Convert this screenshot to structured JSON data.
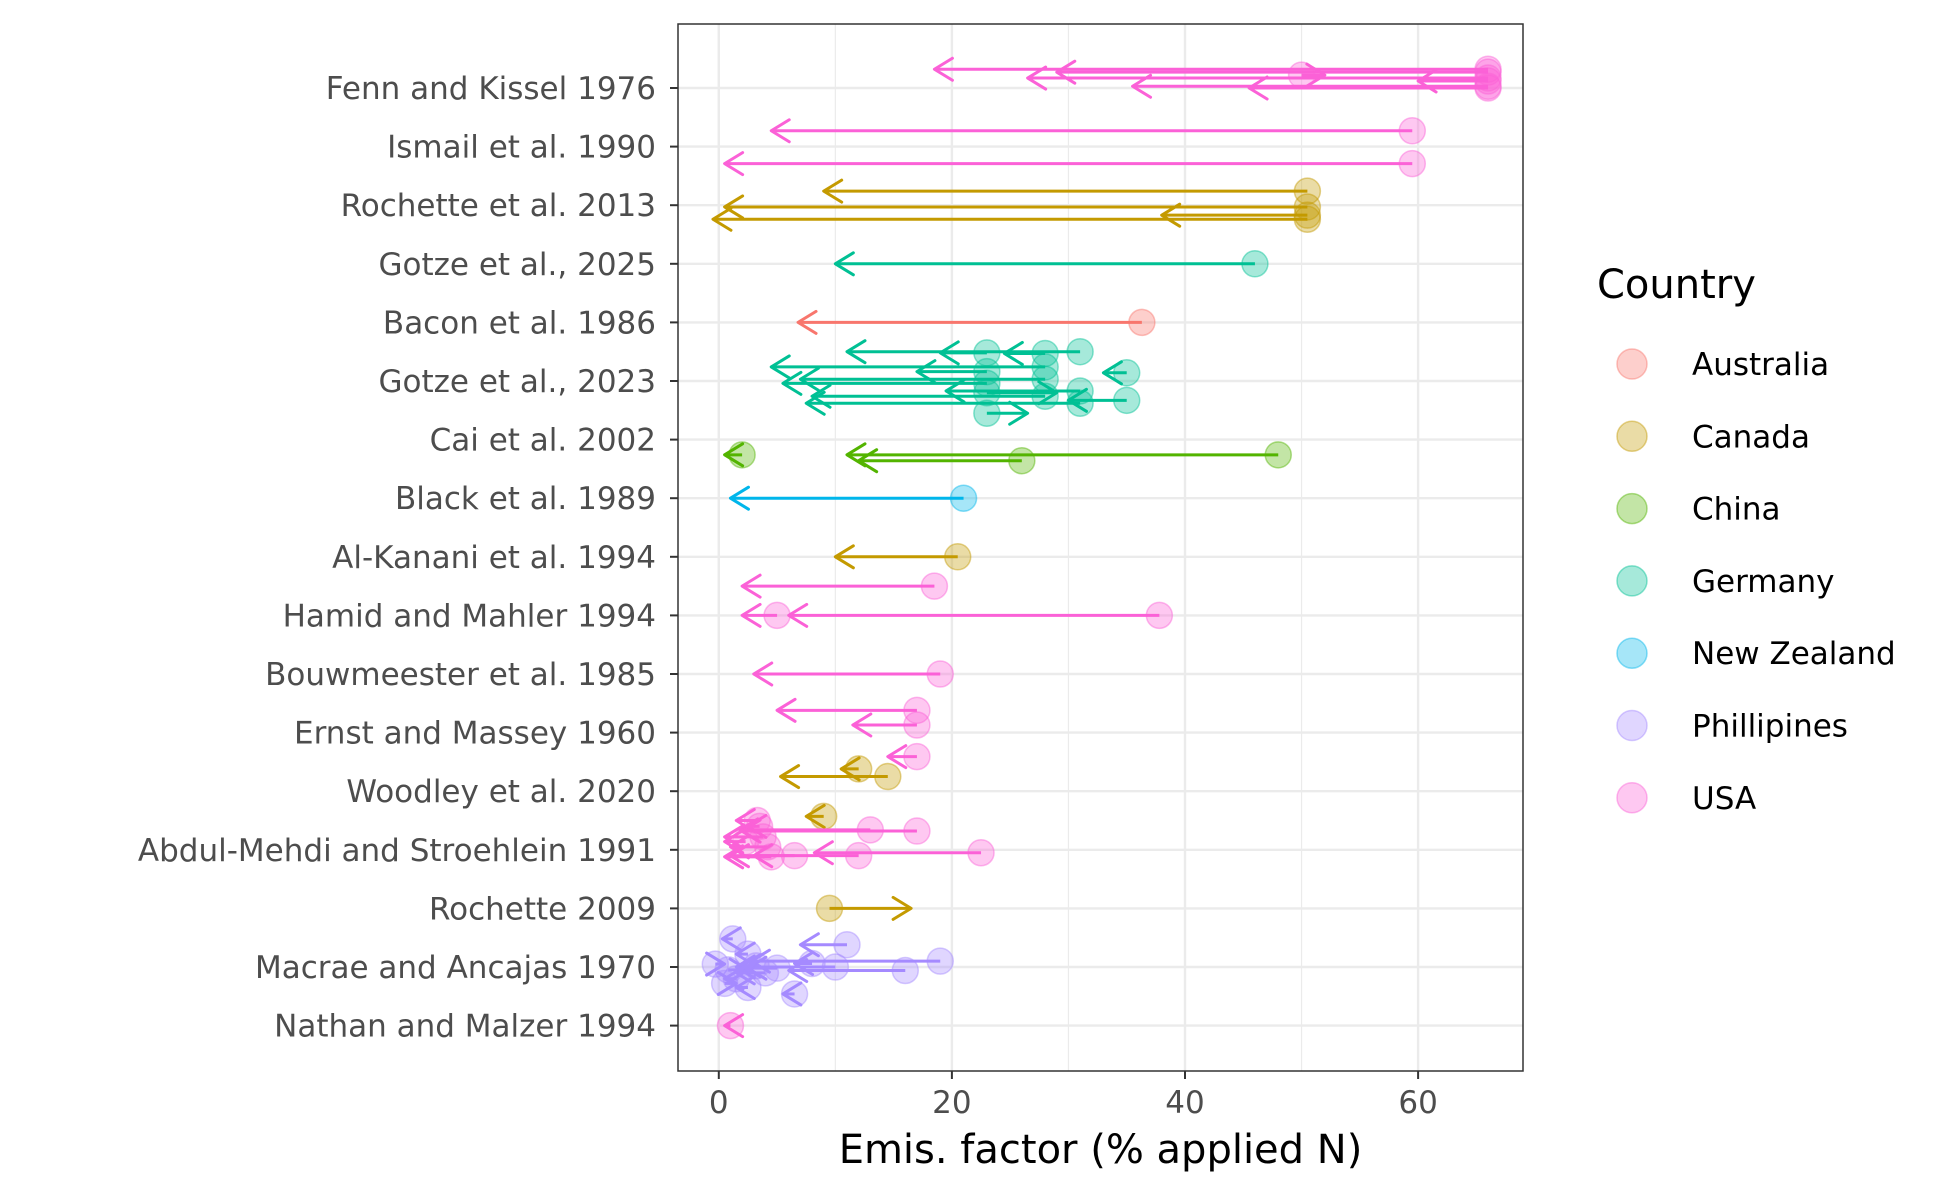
{
  "chart_data": {
    "type": "scatter",
    "xlabel": "Emis. factor (% applied N)",
    "ylabel": "",
    "xlim": [
      -3.5,
      69
    ],
    "xticks": [
      0,
      20,
      40,
      60
    ],
    "grid": true,
    "legend_title": "Country",
    "legend_position": "right",
    "categories": [
      "Fenn and Kissel 1976",
      "Ismail et al. 1990",
      "Rochette et al. 2013",
      "Gotze et al., 2025",
      "Bacon et al. 1986",
      "Gotze et al., 2023",
      "Cai et al. 2002",
      "Black et al. 1989",
      "Al-Kanani et al. 1994",
      "Hamid and Mahler 1994",
      "Bouwmeester et al. 1985",
      "Ernst and Massey 1960",
      "Woodley et al. 2020",
      "Abdul-Mehdi and Stroehlein 1991",
      "Rochette 2009",
      "Macrae and Ancajas 1970",
      "Nathan and Malzer 1994"
    ],
    "countries": [
      {
        "name": "Australia",
        "color": "#F8766D"
      },
      {
        "name": "Canada",
        "color": "#C49A00"
      },
      {
        "name": "China",
        "color": "#53B400"
      },
      {
        "name": "Germany",
        "color": "#00C094"
      },
      {
        "name": "New Zealand",
        "color": "#00B6EB"
      },
      {
        "name": "Phillipines",
        "color": "#A58AFF"
      },
      {
        "name": "USA",
        "color": "#FB61D7"
      }
    ],
    "series": [
      {
        "study": "Fenn and Kissel 1976",
        "country": "USA",
        "points": [
          {
            "y": -0.32,
            "from": 66,
            "to": 18.5
          },
          {
            "y": -0.27,
            "from": 66,
            "to": 29
          },
          {
            "y": -0.22,
            "from": 50,
            "to": 52
          },
          {
            "y": -0.17,
            "from": 66,
            "to": 26.5
          },
          {
            "y": -0.12,
            "from": 66,
            "to": 60
          },
          {
            "y": -0.03,
            "from": 66,
            "to": 35.5
          },
          {
            "y": 0.0,
            "from": 66,
            "to": 45.5
          }
        ]
      },
      {
        "study": "Ismail et al. 1990",
        "country": "USA",
        "points": [
          {
            "y": 0.73,
            "from": 59.5,
            "to": 4.5
          },
          {
            "y": 1.29,
            "from": 59.5,
            "to": 0.5
          }
        ]
      },
      {
        "study": "Rochette et al. 2013",
        "country": "Canada",
        "points": [
          {
            "y": 1.76,
            "from": 50.5,
            "to": 9
          },
          {
            "y": 2.03,
            "from": 50.5,
            "to": 0.5
          },
          {
            "y": 2.17,
            "from": 50.5,
            "to": 38
          },
          {
            "y": 2.24,
            "from": 50.5,
            "to": -0.5
          }
        ]
      },
      {
        "study": "Gotze et al., 2025",
        "country": "Germany",
        "points": [
          {
            "y": 3.0,
            "from": 46,
            "to": 10
          }
        ]
      },
      {
        "study": "Bacon et al. 1986",
        "country": "Australia",
        "points": [
          {
            "y": 4.0,
            "from": 36.3,
            "to": 6.8
          }
        ]
      },
      {
        "study": "Gotze et al., 2023",
        "country": "Germany",
        "points": [
          {
            "y": 4.52,
            "from": 23,
            "to": 19
          },
          {
            "y": 4.53,
            "from": 28,
            "to": 24.5
          },
          {
            "y": 4.5,
            "from": 31,
            "to": 11
          },
          {
            "y": 4.76,
            "from": 28,
            "to": 4.5
          },
          {
            "y": 4.84,
            "from": 23,
            "to": 17
          },
          {
            "y": 4.86,
            "from": 35,
            "to": 33
          },
          {
            "y": 4.97,
            "from": 28,
            "to": 7
          },
          {
            "y": 5.04,
            "from": 23,
            "to": 5.5
          },
          {
            "y": 5.17,
            "from": 31,
            "to": 19.5
          },
          {
            "y": 5.2,
            "from": 23,
            "to": 29
          },
          {
            "y": 5.26,
            "from": 28,
            "to": 8
          },
          {
            "y": 5.33,
            "from": 35,
            "to": 30
          },
          {
            "y": 5.38,
            "from": 31,
            "to": 7.5
          },
          {
            "y": 5.55,
            "from": 23,
            "to": 26.5
          }
        ]
      },
      {
        "study": "Cai et al. 2002",
        "country": "China",
        "points": [
          {
            "y": 6.26,
            "from": 2,
            "to": 0.5
          },
          {
            "y": 6.26,
            "from": 48,
            "to": 11
          },
          {
            "y": 6.36,
            "from": 26,
            "to": 12
          }
        ]
      },
      {
        "study": "Black et al. 1989",
        "country": "New Zealand",
        "points": [
          {
            "y": 7.0,
            "from": 21,
            "to": 1
          }
        ]
      },
      {
        "study": "Al-Kanani et al. 1994",
        "country": "Canada",
        "points": [
          {
            "y": 8.0,
            "from": 20.5,
            "to": 10
          }
        ]
      },
      {
        "study": "Hamid and Mahler 1994",
        "country": "USA",
        "points": [
          {
            "y": 8.5,
            "from": 18.5,
            "to": 2
          },
          {
            "y": 9.0,
            "from": 37.8,
            "to": 6
          },
          {
            "y": 9.0,
            "from": 5,
            "to": 2
          }
        ]
      },
      {
        "study": "Bouwmeester et al. 1985",
        "country": "USA",
        "points": [
          {
            "y": 10.0,
            "from": 19,
            "to": 3
          }
        ]
      },
      {
        "study": "Ernst and Massey 1960",
        "country": "USA",
        "points": [
          {
            "y": 10.62,
            "from": 17,
            "to": 5
          },
          {
            "y": 10.87,
            "from": 17,
            "to": 11.5
          },
          {
            "y": 11.41,
            "from": 17,
            "to": 14.5
          }
        ]
      },
      {
        "study": "Woodley et al. 2020",
        "country": "Canada",
        "points": [
          {
            "y": 11.62,
            "from": 12,
            "to": 10.5
          },
          {
            "y": 11.75,
            "from": 14.5,
            "to": 5.3
          },
          {
            "y": 12.43,
            "from": 9,
            "to": 7.5
          }
        ]
      },
      {
        "study": "Abdul-Mehdi and Stroehlein 1991",
        "country": "USA",
        "points": [
          {
            "y": 12.5,
            "from": 3.3,
            "to": 1.5
          },
          {
            "y": 12.6,
            "from": 3.5,
            "to": 2.5
          },
          {
            "y": 12.66,
            "from": 13,
            "to": 1.8
          },
          {
            "y": 12.68,
            "from": 17,
            "to": 2
          },
          {
            "y": 12.78,
            "from": 3.8,
            "to": 0.5
          },
          {
            "y": 12.86,
            "from": 2.3,
            "to": 0.5
          },
          {
            "y": 12.95,
            "from": 4.2,
            "to": 1
          },
          {
            "y": 13.05,
            "from": 22.5,
            "to": 8.2
          },
          {
            "y": 13.1,
            "from": 6.5,
            "to": 1
          },
          {
            "y": 13.1,
            "from": 12,
            "to": 3
          },
          {
            "y": 13.12,
            "from": 4.5,
            "to": 0.5
          }
        ]
      },
      {
        "study": "Rochette 2009",
        "country": "Canada",
        "points": [
          {
            "y": 14.0,
            "from": 9.5,
            "to": 16.5
          }
        ]
      },
      {
        "study": "Macrae and Ancajas 1970",
        "country": "Phillipines",
        "points": [
          {
            "y": 14.52,
            "from": 1.2,
            "to": 0.3
          },
          {
            "y": 14.62,
            "from": 11,
            "to": 7
          },
          {
            "y": 14.78,
            "from": 2.5,
            "to": 1.5
          },
          {
            "y": 14.9,
            "from": 19,
            "to": 2.8
          },
          {
            "y": 14.94,
            "from": 8,
            "to": 6.5
          },
          {
            "y": 14.95,
            "from": -0.3,
            "to": 0.5
          },
          {
            "y": 14.98,
            "from": 3.2,
            "to": 2
          },
          {
            "y": 15.0,
            "from": 10,
            "to": 1.5
          },
          {
            "y": 15.02,
            "from": 5,
            "to": 2.5
          },
          {
            "y": 15.05,
            "from": 0.8,
            "to": 2.5
          },
          {
            "y": 15.06,
            "from": 16,
            "to": 6
          },
          {
            "y": 15.1,
            "from": 4,
            "to": 1.5
          },
          {
            "y": 15.2,
            "from": 1.5,
            "to": 0.5
          },
          {
            "y": 15.28,
            "from": 0.5,
            "to": 1.5
          },
          {
            "y": 15.35,
            "from": 2.5,
            "to": 1.5
          },
          {
            "y": 15.46,
            "from": 6.5,
            "to": 5.5
          }
        ]
      },
      {
        "study": "Nathan and Malzer 1994",
        "country": "USA",
        "points": [
          {
            "y": 16.0,
            "from": 1,
            "to": 0.5
          }
        ]
      }
    ]
  }
}
